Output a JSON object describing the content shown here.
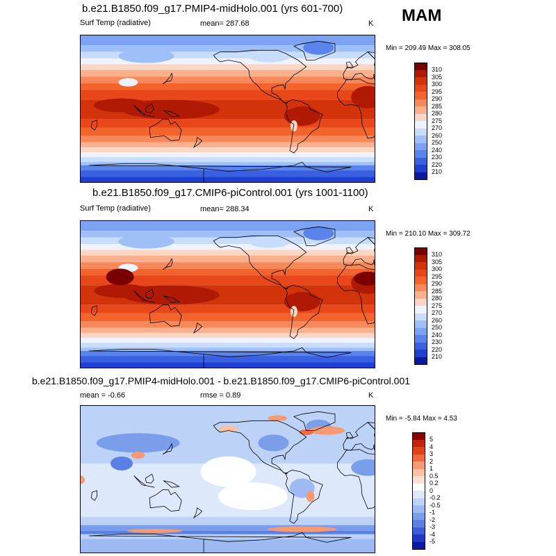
{
  "season": "MAM",
  "units": "K",
  "panels": [
    {
      "id": "midholo",
      "title": "b.e21.B1850.f09_g17.PMIP4-midHolo.001 (yrs 601-700)",
      "left_label": "Surf Temp (radiative)",
      "mean_label": "mean= 287.68",
      "rmse_label": "",
      "units": "K",
      "minmax": "Min = 209.49 Max = 308.05",
      "levels": [
        "310",
        "305",
        "300",
        "295",
        "290",
        "285",
        "280",
        "275",
        "270",
        "260",
        "250",
        "240",
        "230",
        "220",
        "210"
      ],
      "colors": [
        "#7a0000",
        "#b01a05",
        "#d2330b",
        "#e8471a",
        "#f3642d",
        "#f6885a",
        "#f8b08f",
        "#fbd6c3",
        "#eef3ff",
        "#c8dcfc",
        "#9ebff8",
        "#7ba2f3",
        "#5a84ec",
        "#3a60e2",
        "#1d3fd2",
        "#0a1a9e"
      ],
      "kind": "abs"
    },
    {
      "id": "picontrol",
      "title": "b.e21.B1850.f09_g17.CMIP6-piControl.001 (yrs 1001-1100)",
      "left_label": "Surf Temp (radiative)",
      "mean_label": "mean= 288.34",
      "rmse_label": "",
      "units": "K",
      "minmax": "Min = 210.10 Max = 309.72",
      "levels": [
        "310",
        "305",
        "300",
        "295",
        "290",
        "285",
        "280",
        "275",
        "270",
        "260",
        "250",
        "240",
        "230",
        "220",
        "210"
      ],
      "colors": [
        "#7a0000",
        "#b01a05",
        "#d2330b",
        "#e8471a",
        "#f3642d",
        "#f6885a",
        "#f8b08f",
        "#fbd6c3",
        "#eef3ff",
        "#c8dcfc",
        "#9ebff8",
        "#7ba2f3",
        "#5a84ec",
        "#3a60e2",
        "#1d3fd2",
        "#0a1a9e"
      ],
      "kind": "abs"
    },
    {
      "id": "diff",
      "title": "b.e21.B1850.f09_g17.PMIP4-midHolo.001 - b.e21.B1850.f09_g17.CMIP6-piControl.001",
      "left_label": "mean =  -0.66",
      "mean_label": "",
      "rmse_label": "rmse =  0.89",
      "units": "K",
      "minmax": "Min =  -5.84 Max =  4.53",
      "levels": [
        "5",
        "4",
        "3",
        "2",
        "1",
        "0.5",
        "0.2",
        "0",
        "-0.2",
        "-0.5",
        "-1",
        "-2",
        "-3",
        "-4",
        "-5"
      ],
      "colors": [
        "#8c0000",
        "#c0240a",
        "#e0431c",
        "#ef6a3e",
        "#f59a73",
        "#f9c2a8",
        "#fbe1d5",
        "#ffffff",
        "#dde9fb",
        "#bcd2f7",
        "#9dbaf2",
        "#7b9eeb",
        "#5a80e3",
        "#3c5ed7",
        "#2038c4",
        "#0a1a9e"
      ],
      "kind": "diff"
    }
  ]
}
